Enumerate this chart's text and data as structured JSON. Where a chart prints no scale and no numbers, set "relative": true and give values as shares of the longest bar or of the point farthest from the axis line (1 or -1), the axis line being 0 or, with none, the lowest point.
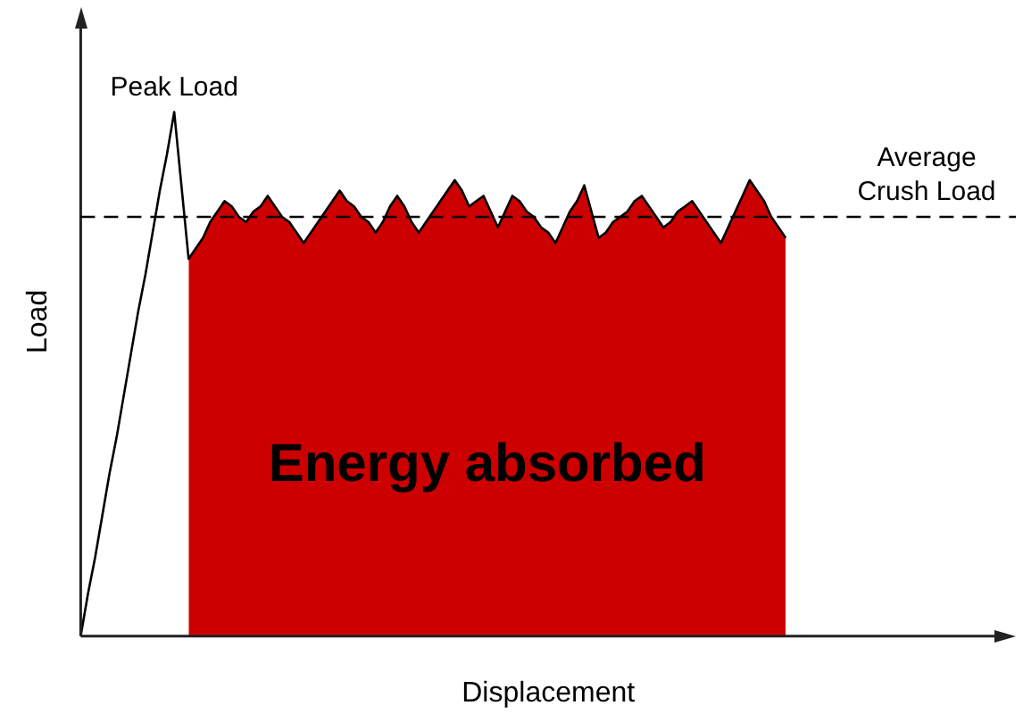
{
  "chart_data": {
    "type": "line",
    "relative": true,
    "xlabel": "Displacement",
    "ylabel": "Load",
    "legend": false,
    "grid": false,
    "marker": "none",
    "categories": [
      null,
      null,
      null,
      null,
      null,
      null,
      null,
      null,
      null,
      null,
      null,
      null,
      null,
      null,
      null,
      null,
      null,
      null,
      null,
      null,
      null,
      null,
      null,
      null,
      null,
      null,
      null,
      null,
      null,
      null,
      null,
      null,
      null,
      null,
      null,
      null,
      null,
      null,
      null,
      null,
      null,
      null,
      null,
      null,
      null,
      null,
      null,
      null,
      null,
      null,
      null,
      null,
      null,
      null,
      null,
      null,
      null,
      null,
      null,
      null,
      null,
      null,
      null,
      null,
      null,
      null,
      null,
      null,
      null,
      null,
      null,
      null,
      null,
      null,
      null,
      null,
      null,
      null,
      null,
      null,
      null,
      null,
      null,
      null,
      null,
      null,
      null,
      null,
      null,
      null,
      null,
      null,
      null,
      null,
      null,
      null,
      null,
      null,
      null,
      null,
      null,
      null,
      null,
      null,
      null,
      null,
      null,
      null,
      null,
      null,
      null,
      null,
      null,
      null,
      null,
      null,
      null,
      null,
      null,
      null,
      null,
      null,
      null,
      null,
      null,
      null,
      null,
      null,
      null,
      null,
      null
    ],
    "series": [
      {
        "type": "line",
        "color": "#000000",
        "values": [
          0,
          0.08,
          0.15,
          0.23,
          0.31,
          0.38,
          0.46,
          0.54,
          0.62,
          0.69,
          0.77,
          0.85,
          0.92,
          1,
          0.86,
          0.72,
          0.74,
          0.76,
          0.79,
          0.81,
          0.83,
          0.82,
          0.8,
          0.79,
          0.81,
          0.82,
          0.84,
          0.82,
          0.8,
          0.79,
          0.77,
          0.75,
          0.77,
          0.79,
          0.81,
          0.83,
          0.85,
          0.83,
          0.82,
          0.8,
          0.79,
          0.77,
          0.79,
          0.82,
          0.84,
          0.82,
          0.79,
          0.77,
          0.79,
          0.81,
          0.83,
          0.85,
          0.87,
          0.85,
          0.82,
          0.83,
          0.84,
          0.81,
          0.78,
          0.81,
          0.84,
          0.83,
          0.81,
          0.8,
          0.78,
          0.77,
          0.75,
          0.78,
          0.81,
          0.83,
          0.86,
          0.81,
          0.76,
          0.77,
          0.79,
          0.8,
          0.81,
          0.83,
          0.84,
          0.82,
          0.8,
          0.78,
          0.79,
          0.81,
          0.82,
          0.83,
          0.81,
          0.79,
          0.77,
          0.75,
          0.78,
          0.81,
          0.84,
          0.87,
          0.85,
          0.83,
          0.8,
          0.78,
          0.76,
          null,
          null,
          null,
          null,
          null,
          null,
          null,
          null,
          null,
          null,
          null,
          null,
          null,
          null,
          null,
          null,
          null,
          null,
          null,
          null,
          null,
          null,
          null,
          null,
          null,
          null,
          null,
          null,
          null,
          null,
          null,
          null
        ]
      },
      {
        "type": "area",
        "color": "#cc0000",
        "values": [
          null,
          null,
          null,
          null,
          null,
          null,
          null,
          null,
          null,
          null,
          null,
          null,
          null,
          null,
          null,
          0.72,
          0.74,
          0.76,
          0.79,
          0.81,
          0.83,
          0.82,
          0.8,
          0.79,
          0.81,
          0.82,
          0.84,
          0.82,
          0.8,
          0.79,
          0.77,
          0.75,
          0.77,
          0.79,
          0.81,
          0.83,
          0.85,
          0.83,
          0.82,
          0.8,
          0.79,
          0.77,
          0.79,
          0.82,
          0.84,
          0.82,
          0.79,
          0.77,
          0.79,
          0.81,
          0.83,
          0.85,
          0.87,
          0.85,
          0.82,
          0.83,
          0.84,
          0.81,
          0.78,
          0.81,
          0.84,
          0.83,
          0.81,
          0.8,
          0.78,
          0.77,
          0.75,
          0.78,
          0.81,
          0.83,
          0.86,
          0.81,
          0.76,
          0.77,
          0.79,
          0.8,
          0.81,
          0.83,
          0.84,
          0.82,
          0.8,
          0.78,
          0.79,
          0.81,
          0.82,
          0.83,
          0.81,
          0.79,
          0.77,
          0.75,
          0.78,
          0.81,
          0.84,
          0.87,
          0.85,
          0.83,
          0.8,
          0.78,
          0.76,
          null,
          null,
          null,
          null,
          null,
          null,
          null,
          null,
          null,
          null,
          null,
          null,
          null,
          null,
          null,
          null,
          null,
          null,
          null,
          null,
          null,
          null,
          null,
          null,
          null,
          null,
          null,
          null,
          null,
          null,
          null,
          null
        ]
      }
    ],
    "ref_lines": [
      {
        "axis": "y",
        "value": 0.8,
        "label": "Average\nCrush Load",
        "color": "#000000",
        "line_style": "dashed"
      }
    ],
    "annotations": [
      {
        "text": "Peak Load",
        "y": 1
      },
      "Energy absorbed"
    ]
  }
}
